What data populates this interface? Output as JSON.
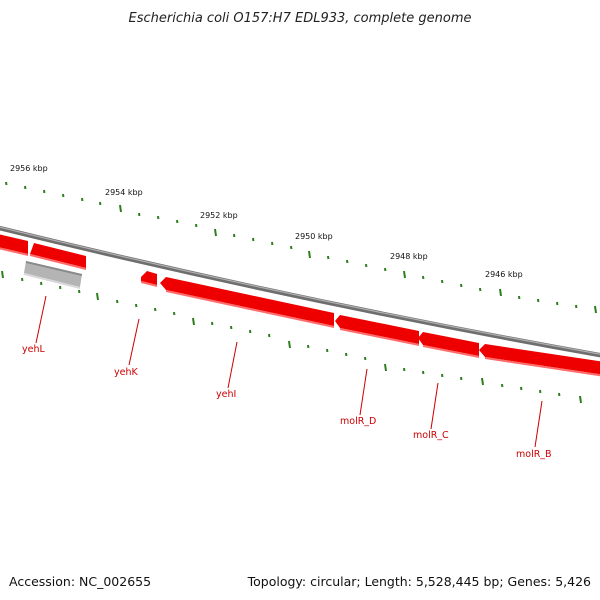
{
  "title": "Escherichia coli O157:H7 EDL933, complete genome",
  "footer": {
    "accession": "Accession: NC_002655",
    "summary": "Topology: circular; Length: 5,528,445 bp; Genes: 5,426"
  },
  "scale_labels": [
    "2956 kbp",
    "2954 kbp",
    "2952 kbp",
    "2950 kbp",
    "2948 kbp",
    "2946 kbp"
  ],
  "genes": [
    {
      "name": "yehL",
      "color": "#ee0000"
    },
    {
      "name": "yehK",
      "color": "#ee0000"
    },
    {
      "name": "yehI",
      "color": "#ee0000"
    },
    {
      "name": "molR_D",
      "color": "#ee0000"
    },
    {
      "name": "molR_C",
      "color": "#ee0000"
    },
    {
      "name": "molR_B",
      "color": "#ee0000"
    }
  ],
  "colors": {
    "backbone": "#808080",
    "gene": "#ee0000",
    "gene_highlight": "#ff5a5a",
    "pseudo_gene": "#aaaaaa",
    "tick": "#2e7d1e",
    "label": "#cc0000"
  }
}
